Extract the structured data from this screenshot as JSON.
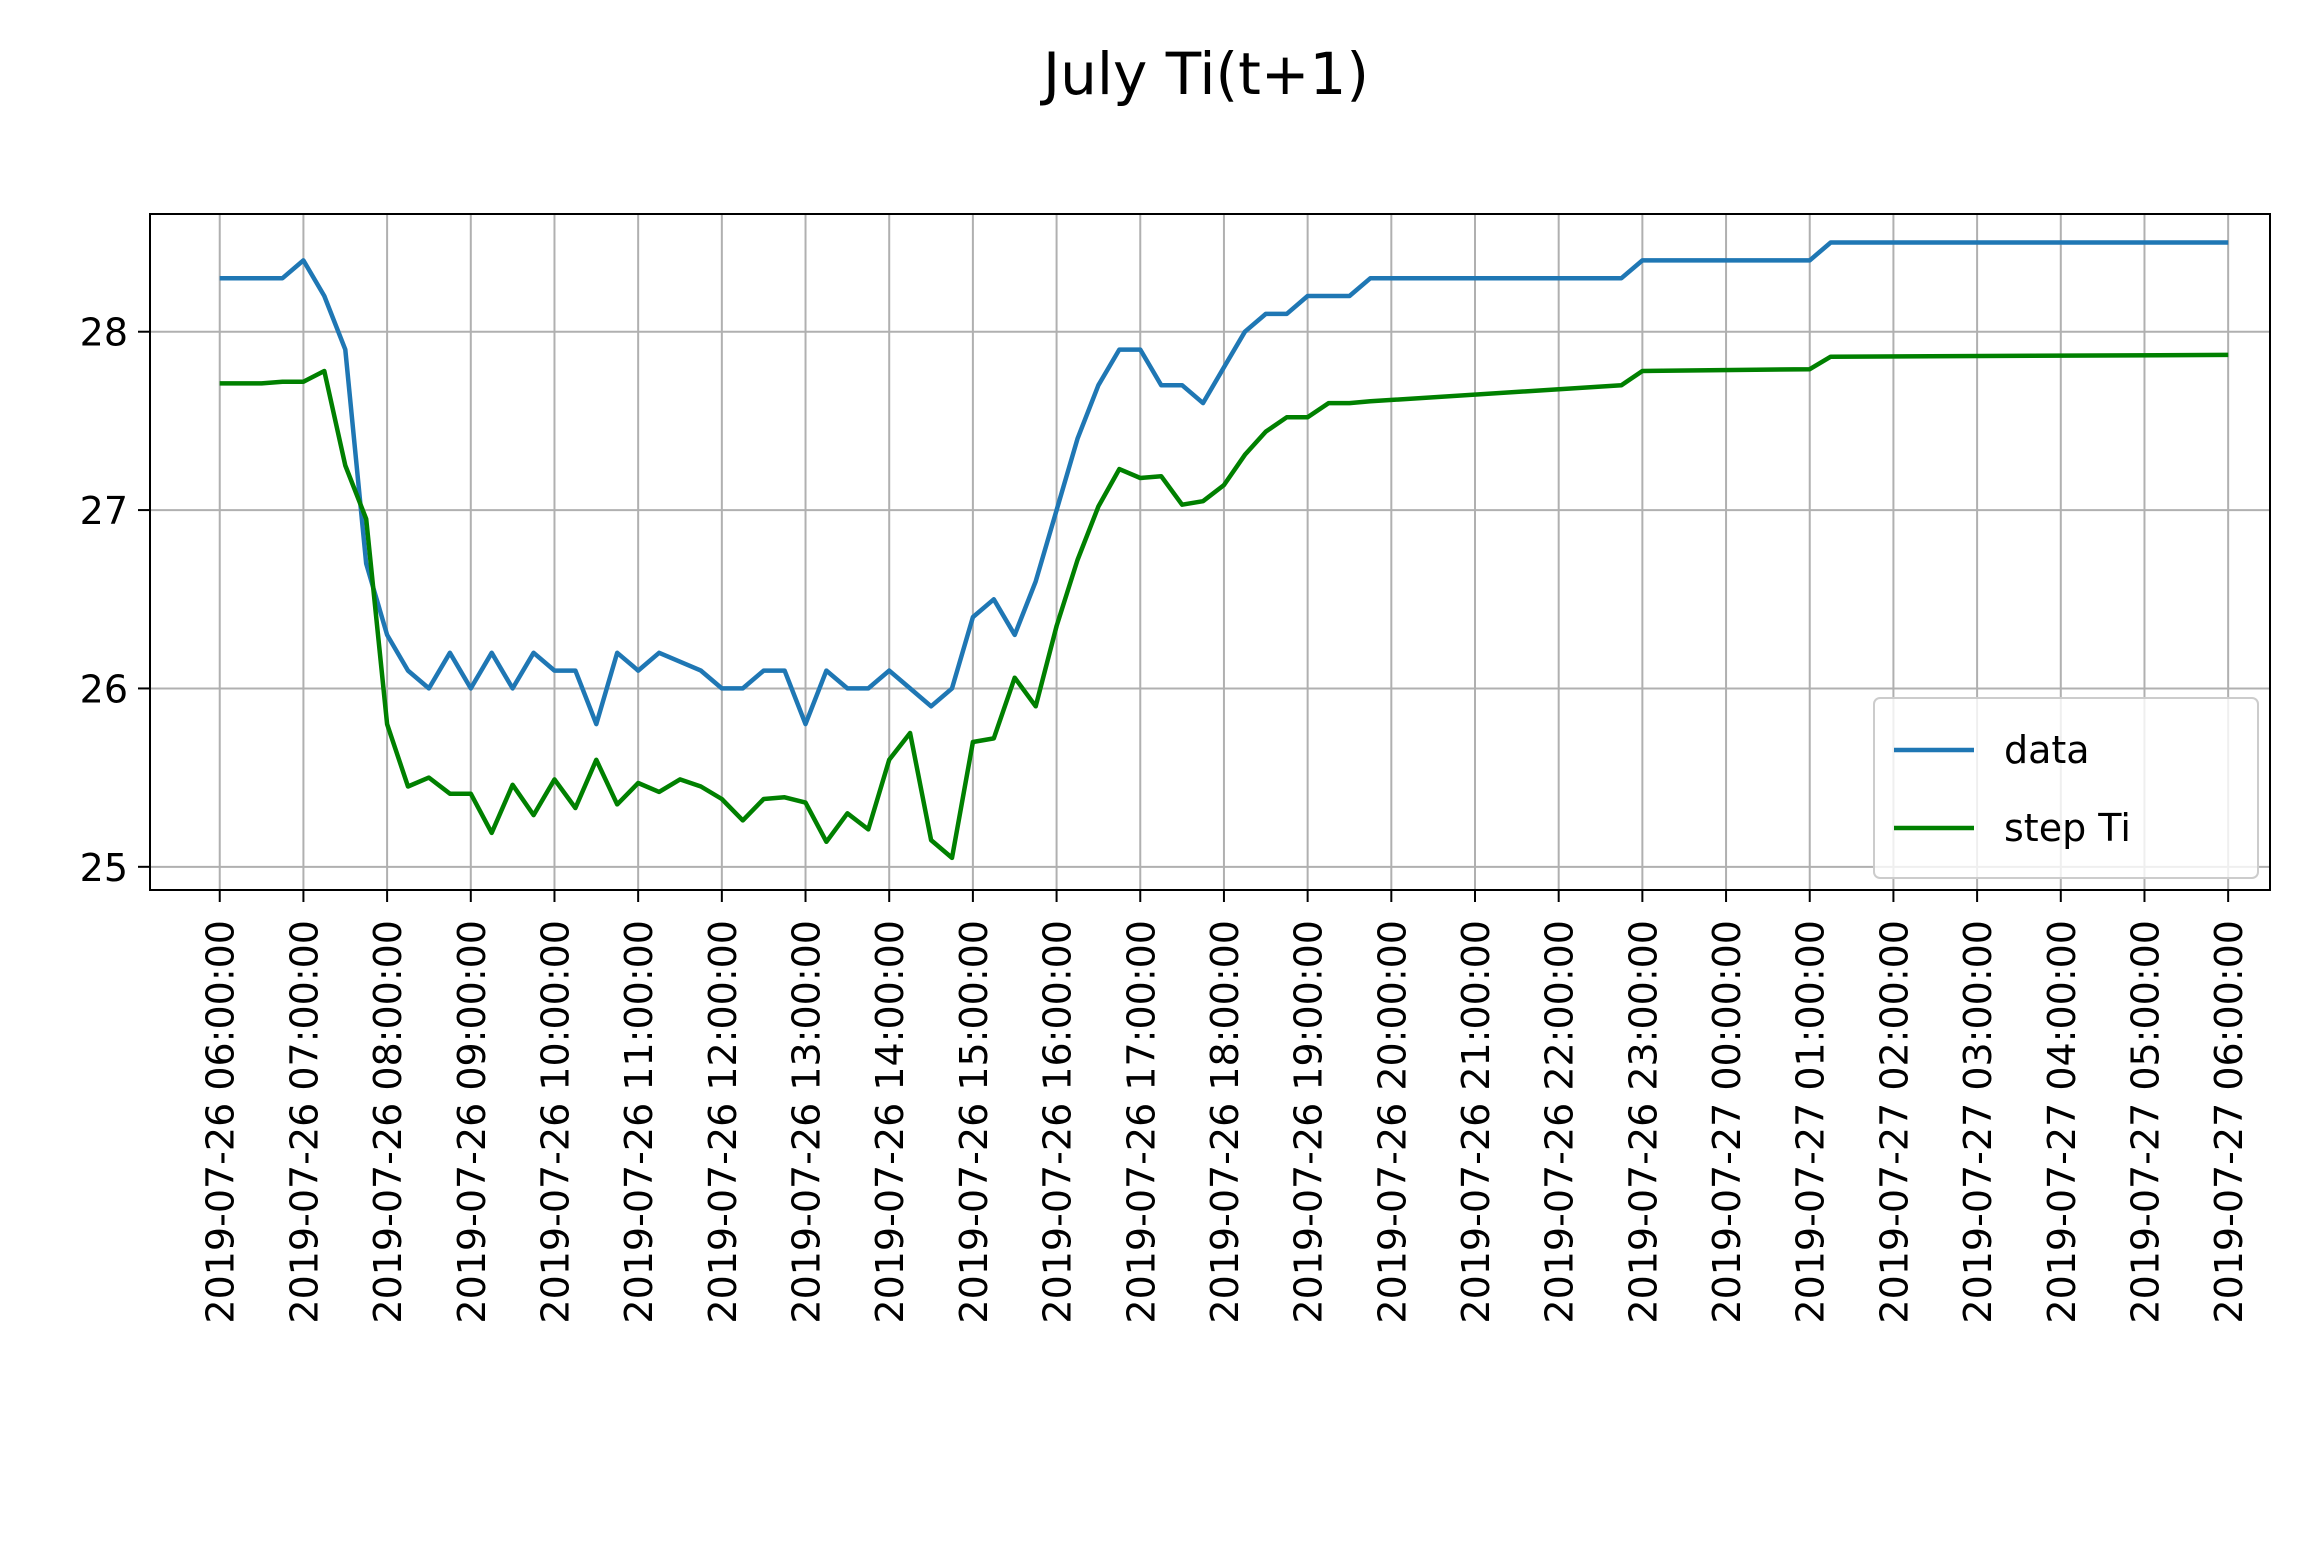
{
  "chart_data": {
    "type": "line",
    "title": "July Ti(t+1)",
    "xlabel": "",
    "ylabel": "",
    "x_unit": "datetime",
    "x_ticks": [
      "2019-07-26 06:00:00",
      "2019-07-26 07:00:00",
      "2019-07-26 08:00:00",
      "2019-07-26 09:00:00",
      "2019-07-26 10:00:00",
      "2019-07-26 11:00:00",
      "2019-07-26 12:00:00",
      "2019-07-26 13:00:00",
      "2019-07-26 14:00:00",
      "2019-07-26 15:00:00",
      "2019-07-26 16:00:00",
      "2019-07-26 17:00:00",
      "2019-07-26 18:00:00",
      "2019-07-26 19:00:00",
      "2019-07-26 20:00:00",
      "2019-07-26 21:00:00",
      "2019-07-26 22:00:00",
      "2019-07-26 23:00:00",
      "2019-07-27 00:00:00",
      "2019-07-27 01:00:00",
      "2019-07-27 02:00:00",
      "2019-07-27 03:00:00",
      "2019-07-27 04:00:00",
      "2019-07-27 05:00:00",
      "2019-07-27 06:00:00"
    ],
    "y_ticks": [
      25,
      26,
      27,
      28
    ],
    "xlim": [
      "2019-07-26 05:10:00",
      "2019-07-27 06:30:00"
    ],
    "ylim": [
      24.87,
      28.66
    ],
    "grid": true,
    "legend_position": "lower right",
    "series": [
      {
        "name": "data",
        "color": "#1f77b4",
        "x": [
          "2019-07-26 06:00:00",
          "2019-07-26 06:15:00",
          "2019-07-26 06:30:00",
          "2019-07-26 06:45:00",
          "2019-07-26 07:00:00",
          "2019-07-26 07:15:00",
          "2019-07-26 07:30:00",
          "2019-07-26 07:45:00",
          "2019-07-26 08:00:00",
          "2019-07-26 08:15:00",
          "2019-07-26 08:30:00",
          "2019-07-26 08:45:00",
          "2019-07-26 09:00:00",
          "2019-07-26 09:15:00",
          "2019-07-26 09:30:00",
          "2019-07-26 09:45:00",
          "2019-07-26 10:00:00",
          "2019-07-26 10:15:00",
          "2019-07-26 10:30:00",
          "2019-07-26 10:45:00",
          "2019-07-26 11:00:00",
          "2019-07-26 11:15:00",
          "2019-07-26 11:30:00",
          "2019-07-26 11:45:00",
          "2019-07-26 12:00:00",
          "2019-07-26 12:15:00",
          "2019-07-26 12:30:00",
          "2019-07-26 12:45:00",
          "2019-07-26 13:00:00",
          "2019-07-26 13:15:00",
          "2019-07-26 13:30:00",
          "2019-07-26 13:45:00",
          "2019-07-26 14:00:00",
          "2019-07-26 14:15:00",
          "2019-07-26 14:30:00",
          "2019-07-26 14:45:00",
          "2019-07-26 15:00:00",
          "2019-07-26 15:15:00",
          "2019-07-26 15:30:00",
          "2019-07-26 15:45:00",
          "2019-07-26 16:00:00",
          "2019-07-26 16:15:00",
          "2019-07-26 16:30:00",
          "2019-07-26 16:45:00",
          "2019-07-26 17:00:00",
          "2019-07-26 17:15:00",
          "2019-07-26 17:30:00",
          "2019-07-26 17:45:00",
          "2019-07-26 18:00:00",
          "2019-07-26 18:15:00",
          "2019-07-26 18:30:00",
          "2019-07-26 18:45:00",
          "2019-07-26 19:00:00",
          "2019-07-26 19:15:00",
          "2019-07-26 19:30:00",
          "2019-07-26 19:45:00",
          "2019-07-26 22:45:00",
          "2019-07-26 23:00:00",
          "2019-07-27 01:00:00",
          "2019-07-27 01:15:00",
          "2019-07-27 06:00:00"
        ],
        "y": [
          28.3,
          28.3,
          28.3,
          28.3,
          28.4,
          28.2,
          27.9,
          26.7,
          26.3,
          26.1,
          26.0,
          26.2,
          26.0,
          26.2,
          26.0,
          26.2,
          26.1,
          26.1,
          25.8,
          26.2,
          26.1,
          26.2,
          26.15,
          26.1,
          26.0,
          26.0,
          26.1,
          26.1,
          25.8,
          26.1,
          26.0,
          26.0,
          26.1,
          26.0,
          25.9,
          26.0,
          26.4,
          26.5,
          26.3,
          26.6,
          27.0,
          27.4,
          27.7,
          27.9,
          27.9,
          27.7,
          27.7,
          27.6,
          27.8,
          28.0,
          28.1,
          28.1,
          28.2,
          28.2,
          28.2,
          28.3,
          28.3,
          28.4,
          28.4,
          28.5,
          28.5
        ]
      },
      {
        "name": "step Ti",
        "color": "#008000",
        "x": [
          "2019-07-26 06:00:00",
          "2019-07-26 06:15:00",
          "2019-07-26 06:30:00",
          "2019-07-26 06:45:00",
          "2019-07-26 07:00:00",
          "2019-07-26 07:15:00",
          "2019-07-26 07:30:00",
          "2019-07-26 07:45:00",
          "2019-07-26 08:00:00",
          "2019-07-26 08:15:00",
          "2019-07-26 08:30:00",
          "2019-07-26 08:45:00",
          "2019-07-26 09:00:00",
          "2019-07-26 09:15:00",
          "2019-07-26 09:30:00",
          "2019-07-26 09:45:00",
          "2019-07-26 10:00:00",
          "2019-07-26 10:15:00",
          "2019-07-26 10:30:00",
          "2019-07-26 10:45:00",
          "2019-07-26 11:00:00",
          "2019-07-26 11:15:00",
          "2019-07-26 11:30:00",
          "2019-07-26 11:45:00",
          "2019-07-26 12:00:00",
          "2019-07-26 12:15:00",
          "2019-07-26 12:30:00",
          "2019-07-26 12:45:00",
          "2019-07-26 13:00:00",
          "2019-07-26 13:15:00",
          "2019-07-26 13:30:00",
          "2019-07-26 13:45:00",
          "2019-07-26 14:00:00",
          "2019-07-26 14:15:00",
          "2019-07-26 14:30:00",
          "2019-07-26 14:45:00",
          "2019-07-26 15:00:00",
          "2019-07-26 15:15:00",
          "2019-07-26 15:30:00",
          "2019-07-26 15:45:00",
          "2019-07-26 16:00:00",
          "2019-07-26 16:15:00",
          "2019-07-26 16:30:00",
          "2019-07-26 16:45:00",
          "2019-07-26 17:00:00",
          "2019-07-26 17:15:00",
          "2019-07-26 17:30:00",
          "2019-07-26 17:45:00",
          "2019-07-26 18:00:00",
          "2019-07-26 18:15:00",
          "2019-07-26 18:30:00",
          "2019-07-26 18:45:00",
          "2019-07-26 19:00:00",
          "2019-07-26 19:15:00",
          "2019-07-26 19:30:00",
          "2019-07-26 19:45:00",
          "2019-07-26 22:45:00",
          "2019-07-26 23:00:00",
          "2019-07-27 01:00:00",
          "2019-07-27 01:15:00",
          "2019-07-27 06:00:00"
        ],
        "y": [
          27.71,
          27.71,
          27.71,
          27.72,
          27.72,
          27.78,
          27.25,
          26.95,
          25.8,
          25.45,
          25.5,
          25.41,
          25.41,
          25.19,
          25.46,
          25.29,
          25.49,
          25.33,
          25.6,
          25.35,
          25.47,
          25.42,
          25.49,
          25.45,
          25.38,
          25.26,
          25.38,
          25.39,
          25.36,
          25.14,
          25.3,
          25.21,
          25.6,
          25.75,
          25.15,
          25.05,
          25.7,
          25.72,
          26.06,
          25.9,
          26.35,
          26.72,
          27.02,
          27.23,
          27.18,
          27.19,
          27.03,
          27.05,
          27.14,
          27.31,
          27.44,
          27.52,
          27.52,
          27.6,
          27.6,
          27.61,
          27.7,
          27.78,
          27.79,
          27.86,
          27.87
        ]
      }
    ]
  }
}
